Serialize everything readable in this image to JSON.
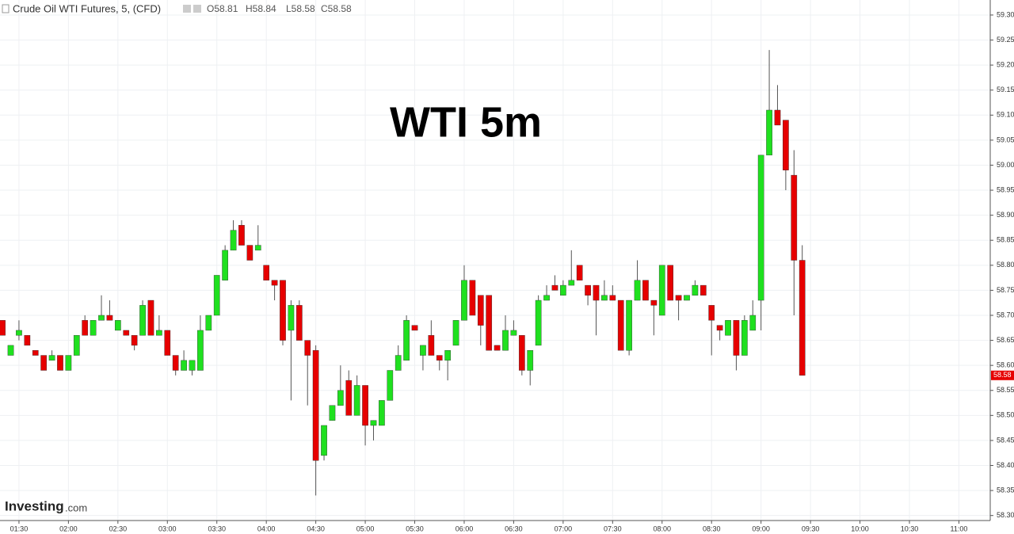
{
  "chart_data": {
    "type": "candlestick",
    "title": "Crude Oil WTI Futures, 5, (CFD)",
    "ohlc_labels": [
      "O58.81",
      "H58.84",
      "L58.58",
      "C58.58"
    ],
    "annotation": "WTI 5m",
    "watermark": [
      "Investing",
      ".com"
    ],
    "up_color": "#1fe01f",
    "down_color": "#e60000",
    "x": [
      80,
      85,
      90,
      95,
      100,
      105,
      110,
      115,
      120,
      125,
      130,
      135,
      140,
      145,
      150,
      155,
      160,
      165,
      170,
      175,
      180,
      185,
      190,
      195,
      200,
      205,
      210,
      215,
      220,
      225,
      230,
      235,
      240,
      245,
      250,
      255,
      260,
      265,
      270,
      275,
      280,
      285,
      290,
      295,
      300,
      305,
      310,
      315,
      320,
      325,
      330,
      335,
      340,
      345,
      350,
      355,
      360,
      365,
      370,
      375,
      380,
      385,
      390,
      395,
      400,
      405,
      410,
      415,
      420,
      425,
      430,
      435,
      440,
      445,
      450,
      455,
      460,
      465,
      470,
      475,
      480,
      485,
      490,
      495,
      500,
      505,
      510,
      515,
      520,
      525,
      530,
      535,
      540,
      545,
      550,
      555,
      560,
      565
    ],
    "open": [
      58.69,
      58.62,
      58.66,
      58.66,
      58.63,
      58.62,
      58.61,
      58.62,
      58.59,
      58.62,
      58.69,
      58.66,
      58.69,
      58.7,
      58.67,
      58.67,
      58.66,
      58.66,
      58.73,
      58.66,
      58.67,
      58.62,
      58.59,
      58.59,
      58.59,
      58.67,
      58.7,
      58.77,
      58.83,
      58.88,
      58.84,
      58.83,
      58.8,
      58.77,
      58.77,
      58.67,
      58.72,
      58.65,
      58.63,
      58.42,
      58.49,
      58.52,
      58.57,
      58.5,
      58.56,
      58.48,
      58.48,
      58.53,
      58.59,
      58.61,
      58.68,
      58.62,
      58.66,
      58.62,
      58.61,
      58.64,
      58.69,
      58.77,
      58.74,
      58.74,
      58.64,
      58.63,
      58.66,
      58.66,
      58.59,
      58.64,
      58.73,
      58.76,
      58.74,
      58.76,
      58.8,
      58.76,
      58.76,
      58.73,
      58.74,
      58.73,
      58.63,
      58.73,
      58.77,
      58.73,
      58.7,
      58.8,
      58.74,
      58.73,
      58.74,
      58.76,
      58.72,
      58.68,
      58.66,
      58.69,
      58.62,
      58.67,
      58.73,
      59.02,
      59.11,
      59.09,
      58.98,
      58.81
    ],
    "high": [
      58.69,
      58.64,
      58.69,
      58.66,
      58.63,
      58.62,
      58.63,
      58.62,
      58.62,
      58.66,
      58.7,
      58.69,
      58.74,
      58.73,
      58.69,
      58.67,
      58.66,
      58.73,
      58.73,
      58.7,
      58.67,
      58.62,
      58.63,
      58.61,
      58.7,
      58.7,
      58.78,
      58.84,
      58.89,
      58.89,
      58.84,
      58.88,
      58.8,
      58.77,
      58.77,
      58.73,
      58.73,
      58.65,
      58.64,
      58.48,
      58.52,
      58.6,
      58.59,
      58.58,
      58.56,
      58.49,
      58.53,
      58.59,
      58.64,
      58.7,
      58.68,
      58.64,
      58.69,
      58.62,
      58.63,
      58.69,
      58.8,
      58.77,
      58.74,
      58.74,
      58.64,
      58.7,
      58.69,
      58.66,
      58.63,
      58.74,
      58.76,
      58.78,
      58.77,
      58.83,
      58.8,
      58.76,
      58.76,
      58.77,
      58.76,
      58.73,
      58.73,
      58.81,
      58.77,
      58.73,
      58.8,
      58.8,
      58.74,
      58.74,
      58.77,
      58.76,
      58.72,
      58.68,
      58.69,
      58.69,
      58.7,
      58.73,
      59.02,
      59.23,
      59.16,
      59.09,
      59.03,
      58.84
    ],
    "low": [
      58.66,
      58.62,
      58.65,
      58.64,
      58.62,
      58.59,
      58.61,
      58.59,
      58.59,
      58.62,
      58.66,
      58.66,
      58.69,
      58.69,
      58.67,
      58.66,
      58.63,
      58.66,
      58.66,
      58.66,
      58.62,
      58.58,
      58.59,
      58.58,
      58.59,
      58.67,
      58.7,
      58.77,
      58.83,
      58.84,
      58.81,
      58.83,
      58.77,
      58.73,
      58.64,
      58.53,
      58.65,
      58.52,
      58.34,
      58.41,
      58.49,
      58.52,
      58.5,
      58.5,
      58.44,
      58.45,
      58.48,
      58.53,
      58.59,
      58.61,
      58.67,
      58.59,
      58.62,
      58.59,
      58.57,
      58.64,
      58.69,
      58.7,
      58.64,
      58.63,
      58.63,
      58.63,
      58.66,
      58.58,
      58.56,
      58.64,
      58.73,
      58.75,
      58.74,
      58.76,
      58.77,
      58.72,
      58.66,
      58.73,
      58.73,
      58.63,
      58.62,
      58.73,
      58.73,
      58.66,
      58.7,
      58.73,
      58.69,
      58.73,
      58.74,
      58.74,
      58.62,
      58.65,
      58.66,
      58.59,
      58.62,
      58.67,
      58.67,
      59.02,
      59.08,
      58.95,
      58.7,
      58.58
    ],
    "close": [
      58.66,
      58.64,
      58.67,
      58.64,
      58.62,
      58.59,
      58.62,
      58.59,
      58.62,
      58.66,
      58.66,
      58.69,
      58.7,
      58.69,
      58.69,
      58.66,
      58.64,
      58.72,
      58.66,
      58.67,
      58.62,
      58.59,
      58.61,
      58.61,
      58.67,
      58.7,
      58.78,
      58.83,
      58.87,
      58.84,
      58.81,
      58.84,
      58.77,
      58.76,
      58.65,
      58.72,
      58.65,
      58.62,
      58.41,
      58.48,
      58.52,
      58.55,
      58.5,
      58.56,
      58.48,
      58.49,
      58.53,
      58.59,
      58.62,
      58.69,
      58.67,
      58.64,
      58.62,
      58.61,
      58.63,
      58.69,
      58.77,
      58.7,
      58.68,
      58.63,
      58.63,
      58.67,
      58.67,
      58.59,
      58.63,
      58.73,
      58.74,
      58.75,
      58.76,
      58.77,
      58.77,
      58.74,
      58.73,
      58.74,
      58.73,
      58.63,
      58.73,
      58.77,
      58.73,
      58.72,
      58.8,
      58.73,
      58.73,
      58.74,
      58.76,
      58.74,
      58.69,
      58.67,
      58.69,
      58.62,
      58.69,
      58.7,
      59.02,
      59.11,
      59.08,
      58.99,
      58.81,
      58.58
    ],
    "last_price": {
      "value": 58.58,
      "label": "58.58"
    },
    "xlim": [
      78.5,
      679
    ],
    "xticks": [
      {
        "value": 90,
        "label": "01:30"
      },
      {
        "value": 120,
        "label": "02:00"
      },
      {
        "value": 150,
        "label": "02:30"
      },
      {
        "value": 180,
        "label": "03:00"
      },
      {
        "value": 210,
        "label": "03:30"
      },
      {
        "value": 240,
        "label": "04:00"
      },
      {
        "value": 270,
        "label": "04:30"
      },
      {
        "value": 300,
        "label": "05:00"
      },
      {
        "value": 330,
        "label": "05:30"
      },
      {
        "value": 360,
        "label": "06:00"
      },
      {
        "value": 390,
        "label": "06:30"
      },
      {
        "value": 420,
        "label": "07:00"
      },
      {
        "value": 450,
        "label": "07:30"
      },
      {
        "value": 480,
        "label": "08:00"
      },
      {
        "value": 510,
        "label": "08:30"
      },
      {
        "value": 540,
        "label": "09:00"
      },
      {
        "value": 570,
        "label": "09:30"
      },
      {
        "value": 600,
        "label": "10:00"
      },
      {
        "value": 630,
        "label": "10:30"
      },
      {
        "value": 660,
        "label": "11:00"
      }
    ],
    "ylim": [
      58.29,
      59.33
    ],
    "yticks": [
      {
        "value": 58.3,
        "label": "58.30"
      },
      {
        "value": 58.35,
        "label": "58.35"
      },
      {
        "value": 58.4,
        "label": "58.40"
      },
      {
        "value": 58.45,
        "label": "58.45"
      },
      {
        "value": 58.5,
        "label": "58.50"
      },
      {
        "value": 58.55,
        "label": "58.55"
      },
      {
        "value": 58.6,
        "label": "58.60"
      },
      {
        "value": 58.65,
        "label": "58.65"
      },
      {
        "value": 58.7,
        "label": "58.70"
      },
      {
        "value": 58.75,
        "label": "58.75"
      },
      {
        "value": 58.8,
        "label": "58.80"
      },
      {
        "value": 58.85,
        "label": "58.85"
      },
      {
        "value": 58.9,
        "label": "58.90"
      },
      {
        "value": 58.95,
        "label": "58.95"
      },
      {
        "value": 59.0,
        "label": "59.00"
      },
      {
        "value": 59.05,
        "label": "59.05"
      },
      {
        "value": 59.1,
        "label": "59.10"
      },
      {
        "value": 59.15,
        "label": "59.15"
      },
      {
        "value": 59.2,
        "label": "59.20"
      },
      {
        "value": 59.25,
        "label": "59.25"
      },
      {
        "value": 59.3,
        "label": "59.30"
      }
    ],
    "grid": true
  }
}
